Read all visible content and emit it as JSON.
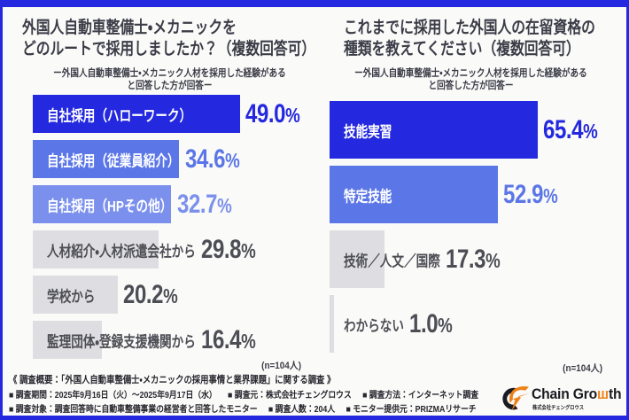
{
  "style": {
    "background": "#fafaf8",
    "frame_color": "#2428de",
    "palette": {
      "primary": "#2428de",
      "mid": "#5b76e7",
      "light": "#7b90ec",
      "muted": "#dedde1"
    },
    "label_on_color": "#ffffff",
    "label_muted_color": "#4d4e55",
    "value_muted_color": "#4d4e55",
    "title_color": "#3b3c47",
    "footer_color": "#26262e",
    "logo_orange": "#ee8218",
    "logo_black": "#1b1b22"
  },
  "chart_data": [
    {
      "type": "bar",
      "orientation": "horizontal",
      "title": "外国人自動車整備士・メカニックをどのルートで採用しましたか？（複数回答可）",
      "title_lines": [
        "外国人自動車整備士・メカニックを",
        "どのルートで採用しましたか？（複数回答可）"
      ],
      "subtitle_lines": [
        "ー外国人自動車整備士・メカニック人材を採用した経験がある",
        "と回答した方が回答ー"
      ],
      "categories": [
        "自社採用（ハローワーク）",
        "自社採用（従業員紹介）",
        "自社採用（HPその他）",
        "人材紹介・人材派遣会社から",
        "学校から",
        "監理団体・登録支援機関から"
      ],
      "values": [
        49.0,
        34.6,
        32.7,
        29.8,
        20.2,
        16.4
      ],
      "value_labels": [
        "49.0%",
        "34.6%",
        "32.7%",
        "29.8%",
        "20.2%",
        "16.4%"
      ],
      "bar_styles": [
        "primary",
        "mid",
        "light",
        "muted",
        "muted",
        "muted"
      ],
      "xlim": [
        0,
        49.0
      ],
      "n_note": "(n=104人)"
    },
    {
      "type": "bar",
      "orientation": "horizontal",
      "title": "これまでに採用した外国人の在留資格の種類を教えてください（複数回答可）",
      "title_lines": [
        "これまでに採用した外国人の在留資格の",
        "種類を教えてください（複数回答可）"
      ],
      "subtitle_lines": [
        "ー外国人自動車整備士・メカニック人材を採用した経験がある",
        "と回答した方が回答ー"
      ],
      "categories": [
        "技能実習",
        "特定技能",
        "技術／人文／国際",
        "わからない"
      ],
      "values": [
        65.4,
        52.9,
        17.3,
        1.0
      ],
      "value_labels": [
        "65.4%",
        "52.9%",
        "17.3%",
        "1.0%"
      ],
      "bar_styles": [
        "primary",
        "mid",
        "muted",
        "muted"
      ],
      "xlim": [
        0,
        65.4
      ],
      "n_note": "(n=104人)"
    }
  ],
  "footer": {
    "heading": "《 調査概要：「外国人自動車整備士・メカニックの採用事情と業界課題」に関する調査 》",
    "line2": [
      "■ 調査期間：2025年9月16日（火）〜2025年9月17日（水）",
      "■ 調査元：株式会社チェングロウス",
      "■ 調査方法：インターネット調査"
    ],
    "line3": [
      "■ 調査対象：調査回答時に自動車整備事業の経営者と回答したモニター",
      "■ 調査人数：204人",
      "■ モニター提供元：PRIZMAリサーチ"
    ]
  },
  "logo": {
    "name_part1": "Chain Gro",
    "name_w": "ш",
    "name_part2": "th",
    "subtext": "株式会社チェングロウス"
  }
}
